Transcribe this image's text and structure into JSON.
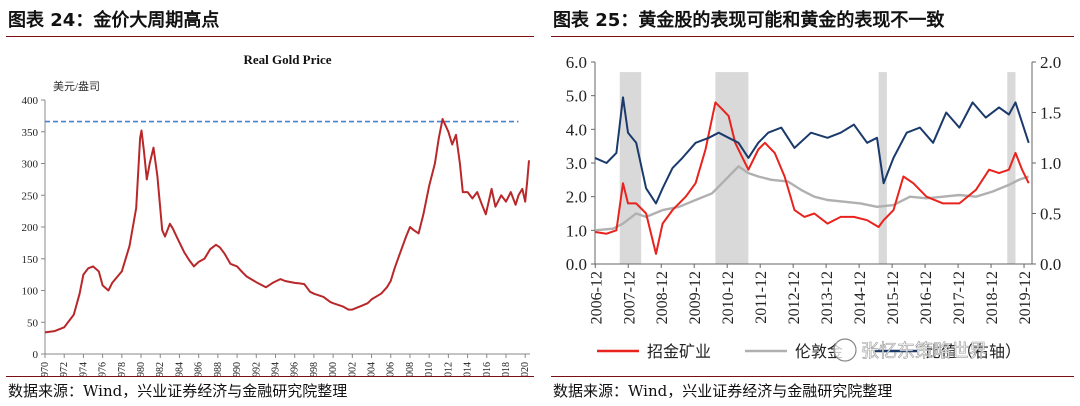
{
  "left": {
    "figure_title": "图表 24：金价大周期高点",
    "source": "数据来源：Wind，兴业证券经济与金融研究院整理"
  },
  "right": {
    "figure_title": "图表 25：黄金股的表现可能和黄金的表现不一致",
    "source": "数据来源：Wind，兴业证券经济与金融研究院整理",
    "watermark": "张忆东策略世界"
  },
  "chart_data": [
    {
      "type": "line",
      "title": "Real Gold Price",
      "ylabel": "美元/盎司",
      "xlabel": "",
      "ylim": [
        0,
        400
      ],
      "y_ticks": [
        0,
        50,
        100,
        150,
        200,
        250,
        300,
        350,
        400
      ],
      "x_ticks": [
        "1970",
        "1972",
        "1974",
        "1976",
        "1978",
        "1980",
        "1982",
        "1984",
        "1986",
        "1988",
        "1990",
        "1992",
        "1994",
        "1996",
        "1998",
        "2000",
        "2002",
        "2004",
        "2006",
        "2008",
        "2010",
        "2012",
        "2014",
        "2016",
        "2018",
        "2020"
      ],
      "xlim": [
        1970,
        2020.5
      ],
      "colors": {
        "line": "#b8282a",
        "reference": "#4a7fd1"
      },
      "series": [
        {
          "x": [
            1970,
            1971,
            1972,
            1973,
            1973.6,
            1974,
            1974.5,
            1975,
            1975.6,
            1976,
            1976.6,
            1977,
            1978,
            1978.8,
            1979.5,
            1979.9,
            1980.05,
            1980.3,
            1980.6,
            1980.9,
            1981.3,
            1981.7,
            1982.2,
            1982.5,
            1983,
            1983.3,
            1983.8,
            1984.5,
            1985,
            1985.5,
            1986,
            1986.6,
            1987.2,
            1987.8,
            1988.2,
            1988.7,
            1989.3,
            1990,
            1990.6,
            1991,
            1992,
            1993,
            1993.7,
            1994.5,
            1995,
            1996,
            1996.6,
            1997,
            1997.6,
            1998,
            1999,
            1999.7,
            2000,
            2001,
            2001.6,
            2002,
            2003,
            2003.6,
            2004,
            2005,
            2005.6,
            2006,
            2006.4,
            2007,
            2007.6,
            2008,
            2008.4,
            2008.9,
            2009.4,
            2010,
            2010.6,
            2011,
            2011.4,
            2011.7,
            2012,
            2012.4,
            2012.8,
            2013.2,
            2013.5,
            2014,
            2014.5,
            2015,
            2015.5,
            2015.9,
            2016.5,
            2016.9,
            2017.5,
            2018,
            2018.5,
            2019,
            2019.3,
            2019.7,
            2020,
            2020.2,
            2020.4
          ],
          "values": [
            34,
            36,
            42,
            62,
            95,
            125,
            135,
            138,
            130,
            108,
            100,
            112,
            130,
            170,
            230,
            340,
            352,
            320,
            275,
            300,
            325,
            280,
            195,
            185,
            205,
            198,
            182,
            160,
            148,
            138,
            145,
            150,
            165,
            172,
            168,
            158,
            142,
            138,
            128,
            122,
            113,
            105,
            112,
            118,
            115,
            112,
            111,
            110,
            98,
            95,
            90,
            82,
            80,
            75,
            70,
            70,
            76,
            80,
            86,
            95,
            105,
            115,
            135,
            160,
            185,
            200,
            195,
            190,
            220,
            265,
            300,
            340,
            370,
            360,
            350,
            330,
            345,
            300,
            255,
            255,
            245,
            255,
            235,
            220,
            260,
            232,
            250,
            240,
            255,
            235,
            250,
            260,
            240,
            270,
            305
          ]
        }
      ],
      "annotations": [
        {
          "type": "reference_line",
          "y": 366
        }
      ]
    },
    {
      "type": "line",
      "title": "",
      "xlabel": "",
      "ylabel": "",
      "ylim": [
        0.0,
        6.0
      ],
      "y_ticks": [
        "0.0",
        "1.0",
        "2.0",
        "3.0",
        "4.0",
        "5.0",
        "6.0"
      ],
      "y2lim": [
        0.0,
        2.0
      ],
      "y2_ticks": [
        "0.0",
        "0.5",
        "1.0",
        "1.5",
        "2.0"
      ],
      "x_ticks": [
        "2006-12",
        "2007-12",
        "2008-12",
        "2009-12",
        "2010-12",
        "2011-12",
        "2012-12",
        "2013-12",
        "2014-12",
        "2015-12",
        "2016-12",
        "2017-12",
        "2018-12",
        "2019-12"
      ],
      "xlim": [
        2006.95,
        2020.2
      ],
      "colors": {
        "gold_miners": "#e8231d",
        "gold": "#b0b0b0",
        "ratio": "#1a3a6c",
        "shade": "#d9d9d9"
      },
      "shaded_periods": [
        [
          2007.7,
          2008.35
        ],
        [
          2010.6,
          2011.6
        ],
        [
          2015.55,
          2015.8
        ],
        [
          2019.45,
          2019.7
        ]
      ],
      "series": [
        {
          "name": "招金矿业",
          "axis": "left",
          "x": [
            2006.95,
            2007.3,
            2007.6,
            2007.8,
            2007.95,
            2008.2,
            2008.5,
            2008.8,
            2009,
            2009.3,
            2009.7,
            2010,
            2010.3,
            2010.6,
            2010.8,
            2011,
            2011.2,
            2011.4,
            2011.6,
            2011.9,
            2012.1,
            2012.4,
            2012.7,
            2013,
            2013.3,
            2013.6,
            2014,
            2014.4,
            2014.8,
            2015.2,
            2015.55,
            2015.7,
            2016,
            2016.3,
            2016.6,
            2017,
            2017.5,
            2018,
            2018.5,
            2018.9,
            2019.2,
            2019.5,
            2019.7,
            2019.9,
            2020.1
          ],
          "values": [
            0.95,
            0.9,
            1.0,
            2.4,
            1.8,
            1.8,
            1.5,
            0.3,
            1.2,
            1.6,
            2.0,
            2.4,
            3.4,
            4.8,
            4.6,
            4.4,
            3.6,
            3.2,
            2.8,
            3.4,
            3.6,
            3.3,
            2.6,
            1.6,
            1.4,
            1.5,
            1.2,
            1.4,
            1.4,
            1.3,
            1.1,
            1.3,
            1.6,
            2.6,
            2.4,
            2.0,
            1.8,
            1.8,
            2.2,
            2.8,
            2.7,
            2.8,
            3.3,
            2.8,
            2.4
          ]
        },
        {
          "name": "伦敦金",
          "axis": "left",
          "x": [
            2006.95,
            2007.5,
            2007.8,
            2008.2,
            2008.5,
            2009,
            2009.5,
            2010,
            2010.5,
            2011,
            2011.3,
            2011.6,
            2011.9,
            2012.3,
            2012.8,
            2013.2,
            2013.6,
            2014,
            2014.5,
            2015,
            2015.5,
            2016,
            2016.5,
            2017,
            2017.5,
            2018,
            2018.5,
            2019,
            2019.5,
            2019.8,
            2020.1
          ],
          "values": [
            1.0,
            1.05,
            1.2,
            1.5,
            1.4,
            1.6,
            1.7,
            1.9,
            2.1,
            2.6,
            2.9,
            2.7,
            2.6,
            2.5,
            2.45,
            2.2,
            2.0,
            1.9,
            1.85,
            1.8,
            1.7,
            1.75,
            2.0,
            1.95,
            2.0,
            2.05,
            2.0,
            2.15,
            2.35,
            2.5,
            2.6
          ]
        },
        {
          "name": "比值（右轴）",
          "axis": "right",
          "x": [
            2006.95,
            2007.3,
            2007.6,
            2007.8,
            2007.95,
            2008.2,
            2008.5,
            2008.8,
            2009,
            2009.3,
            2009.6,
            2010,
            2010.4,
            2010.7,
            2011,
            2011.3,
            2011.6,
            2011.9,
            2012.2,
            2012.6,
            2013,
            2013.5,
            2014,
            2014.4,
            2014.8,
            2015.2,
            2015.5,
            2015.7,
            2016,
            2016.4,
            2016.8,
            2017.2,
            2017.6,
            2018,
            2018.4,
            2018.8,
            2019.2,
            2019.5,
            2019.7,
            2019.9,
            2020.1
          ],
          "values": [
            1.05,
            1.0,
            1.1,
            1.65,
            1.3,
            1.2,
            0.75,
            0.6,
            0.75,
            0.95,
            1.05,
            1.2,
            1.25,
            1.3,
            1.25,
            1.2,
            1.05,
            1.2,
            1.3,
            1.35,
            1.15,
            1.3,
            1.25,
            1.3,
            1.38,
            1.2,
            1.25,
            0.8,
            1.05,
            1.3,
            1.35,
            1.2,
            1.5,
            1.35,
            1.6,
            1.45,
            1.55,
            1.48,
            1.6,
            1.4,
            1.2
          ]
        }
      ],
      "legend": {
        "placement": "bottom"
      }
    }
  ]
}
